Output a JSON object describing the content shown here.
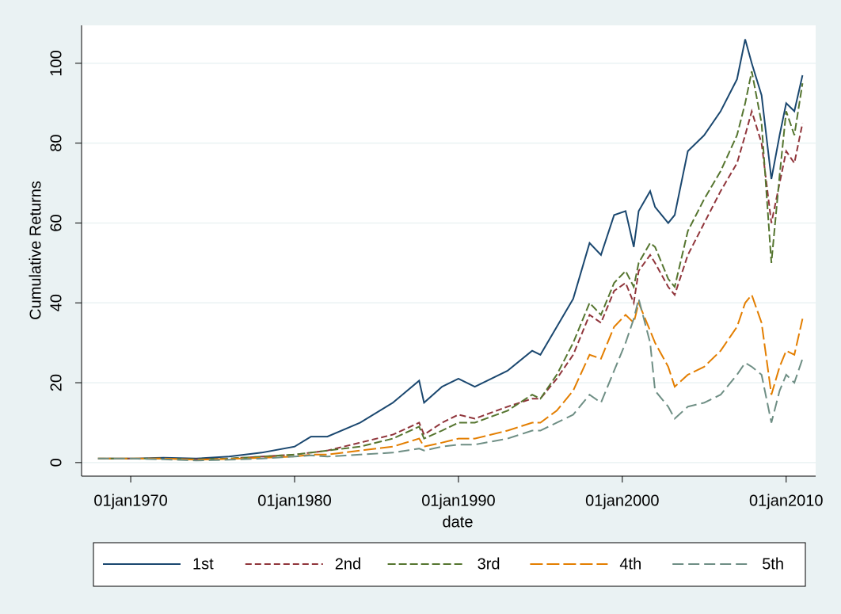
{
  "chart_data": {
    "type": "line",
    "y_label": "Cumulative Returns",
    "x_label": "date",
    "x": [
      1968,
      1970,
      1972,
      1974,
      1976,
      1978,
      1980,
      1981,
      1982,
      1984,
      1986,
      1987.6,
      1987.9,
      1989,
      1990,
      1991,
      1993,
      1994.5,
      1995,
      1996,
      1997,
      1998,
      1998.7,
      1999.5,
      2000.2,
      2000.7,
      2001,
      2001.7,
      2002,
      2002.8,
      2003.2,
      2004,
      2005,
      2006,
      2007,
      2007.5,
      2007.9,
      2008.5,
      2009.1,
      2009.6,
      2010,
      2010.5,
      2011
    ],
    "series": [
      {
        "name": "1st",
        "color": "#1a476f",
        "dash": "none",
        "values": [
          1,
          1,
          1.2,
          1,
          1.5,
          2.5,
          4,
          6.5,
          6.5,
          10,
          15,
          20.5,
          15,
          19,
          21,
          19,
          23,
          28,
          27,
          34,
          41,
          55,
          52,
          62,
          63,
          54,
          63,
          68,
          64,
          60,
          62,
          78,
          82,
          88,
          96,
          106,
          100,
          92,
          71,
          82,
          90,
          88,
          97
        ]
      },
      {
        "name": "2nd",
        "color": "#90353b",
        "dash": "8 4",
        "values": [
          1,
          1,
          1,
          0.8,
          1,
          1.5,
          2,
          2.5,
          3,
          5,
          7,
          10,
          7,
          10,
          12,
          11,
          14,
          16,
          16,
          21,
          27,
          37,
          35,
          43,
          45,
          40,
          48,
          52,
          50,
          44,
          42,
          52,
          60,
          68,
          75,
          82,
          88,
          80,
          60,
          70,
          78,
          75,
          85
        ]
      },
      {
        "name": "3rd",
        "color": "#55752f",
        "dash": "10 4",
        "values": [
          1,
          1,
          1,
          0.8,
          1,
          1.5,
          2,
          2.5,
          3,
          4,
          6,
          9,
          6,
          8,
          10,
          10,
          13,
          17,
          16,
          22,
          30,
          40,
          37,
          45,
          48,
          44,
          50,
          55,
          54,
          46,
          44,
          58,
          66,
          73,
          82,
          90,
          98,
          85,
          50,
          72,
          88,
          82,
          95
        ]
      },
      {
        "name": "4th",
        "color": "#e37e00",
        "dash": "16 5",
        "values": [
          1,
          1,
          1,
          0.7,
          0.9,
          1.2,
          1.5,
          2,
          2,
          3,
          4,
          6,
          4,
          5,
          6,
          6,
          8,
          10,
          10,
          13,
          18,
          27,
          26,
          34,
          37,
          35,
          40,
          33,
          30,
          24,
          19,
          22,
          24,
          28,
          34,
          40,
          42,
          35,
          17,
          24,
          28,
          27,
          36
        ]
      },
      {
        "name": "5th",
        "color": "#6e8e84",
        "dash": "14 6",
        "values": [
          1,
          1,
          0.8,
          0.5,
          0.7,
          1,
          1.5,
          1.8,
          1.5,
          2,
          2.5,
          3.5,
          3,
          4,
          4.5,
          4.5,
          6,
          8,
          8,
          10,
          12,
          17,
          15,
          23,
          30,
          36,
          41,
          30,
          18,
          14,
          11,
          14,
          15,
          17,
          22,
          25,
          24,
          22,
          10,
          18,
          22,
          20,
          26
        ]
      }
    ],
    "xlim": [
      1967,
      2011.8
    ],
    "xticks": [
      {
        "value": 1970,
        "label": "01jan1970"
      },
      {
        "value": 1980,
        "label": "01jan1980"
      },
      {
        "value": 1990,
        "label": "01jan1990"
      },
      {
        "value": 2000,
        "label": "01jan2000"
      },
      {
        "value": 2010,
        "label": "01jan2010"
      }
    ],
    "ylim": [
      -3.4,
      109.5
    ],
    "yticks": [
      0,
      20,
      40,
      60,
      80,
      100
    ],
    "grid": true,
    "legend": "bottom"
  }
}
